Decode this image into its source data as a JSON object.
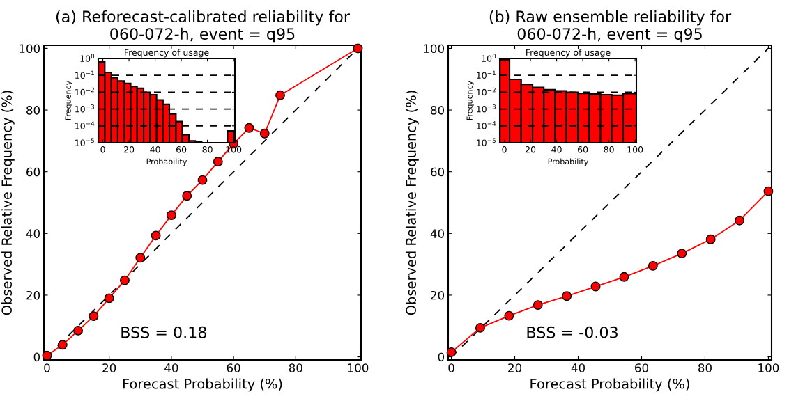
{
  "chart_data": [
    {
      "type": "line",
      "title": "(a) Reforecast-calibrated reliability for\n060-072-h, event = q95",
      "xlabel": "Forecast Probability (%)",
      "ylabel": "Observed Relative Frequency (%)",
      "xlim": [
        -1,
        101
      ],
      "ylim": [
        -1,
        101
      ],
      "xticks": [
        0,
        20,
        40,
        60,
        80,
        100
      ],
      "yticks": [
        0,
        20,
        40,
        60,
        80,
        100
      ],
      "annotations": [
        "BSS = 0.18"
      ],
      "series": [
        {
          "type": "line",
          "color": "#000000",
          "line_style": "dashed",
          "x": [
            0,
            100
          ],
          "values": [
            0,
            100
          ]
        },
        {
          "type": "line",
          "color": "#ff0000",
          "line_style": "solid",
          "marker": "circle",
          "x": [
            0,
            5,
            10,
            15,
            20,
            25,
            30,
            35,
            40,
            45,
            50,
            55,
            60,
            65,
            70,
            75,
            100
          ],
          "values": [
            0.4,
            3.9,
            8.5,
            13.2,
            19.0,
            24.8,
            32.1,
            39.3,
            45.9,
            52.2,
            57.3,
            63.3,
            69.1,
            74.2,
            72.4,
            84.8,
            100
          ]
        }
      ]
    },
    {
      "type": "histogram",
      "title": "Frequency of usage",
      "xlabel": "Probability",
      "ylabel": "Frequency",
      "log": "y",
      "grid": "y",
      "color": "#ff0000",
      "xlim": [
        -3.5,
        101
      ],
      "ylim": [
        1e-05,
        1
      ],
      "xticks": [
        0,
        20,
        40,
        60,
        80,
        100
      ],
      "yticks": [
        {
          "value": 1,
          "label": "10$^{0}$"
        },
        {
          "value": 0.1,
          "label": "10$^{−1}$"
        },
        {
          "value": 0.01,
          "label": "10$^{−2}$"
        },
        {
          "value": 0.001,
          "label": "10$^{−3}$"
        },
        {
          "value": 0.0001,
          "label": "10$^{−4}$"
        },
        {
          "value": 1e-05,
          "label": "10$^{−5}$"
        }
      ],
      "bins": [
        -3.4,
        1.5,
        6.5,
        11.4,
        16.4,
        21.3,
        26.2,
        31.2,
        36.1,
        41.1,
        46.0,
        50.9,
        55.9,
        60.8,
        65.8,
        70.7,
        75.6,
        80.6,
        85.5,
        90.5,
        95.4,
        100.3
      ],
      "values": [
        0.62,
        0.15,
        0.074,
        0.046,
        0.033,
        0.022,
        0.017,
        0.0098,
        0.0071,
        0.0035,
        0.0019,
        0.00051,
        0.00018,
        3e-05,
        1.3e-05,
        1.1e-05,
        null,
        null,
        null,
        null,
        5e-05
      ]
    },
    {
      "type": "line",
      "title": "(b) Raw ensemble reliability for\n060-072-h, event = q95",
      "xlabel": "Forecast Probability (%)",
      "ylabel": "Observed Relative Frequency (%)",
      "xlim": [
        -1,
        101
      ],
      "ylim": [
        -1,
        101
      ],
      "xticks": [
        0,
        20,
        40,
        60,
        80,
        100
      ],
      "yticks": [
        0,
        20,
        40,
        60,
        80,
        100
      ],
      "annotations": [
        "BSS = -0.03"
      ],
      "series": [
        {
          "type": "line",
          "color": "#000000",
          "line_style": "dashed",
          "x": [
            0,
            100
          ],
          "values": [
            0,
            100
          ]
        },
        {
          "type": "line",
          "color": "#ff0000",
          "line_style": "solid",
          "marker": "circle",
          "x": [
            0,
            9.1,
            18.2,
            27.3,
            36.4,
            45.5,
            54.5,
            63.6,
            72.7,
            81.8,
            90.9,
            100
          ],
          "values": [
            1.5,
            9.4,
            13.3,
            16.8,
            19.7,
            22.8,
            25.9,
            29.5,
            33.5,
            38.1,
            44.2,
            53.7
          ]
        }
      ]
    },
    {
      "type": "histogram",
      "title": "Frequency of usage",
      "xlabel": "Probability",
      "ylabel": "Frequency",
      "log": "y",
      "grid": "y",
      "color": "#ff0000",
      "xlim": [
        -3.5,
        101
      ],
      "ylim": [
        1e-05,
        1
      ],
      "xticks": [
        0,
        20,
        40,
        60,
        80,
        100
      ],
      "yticks": [
        {
          "value": 1,
          "label": "10$^{0}$"
        },
        {
          "value": 0.1,
          "label": "10$^{−1}$"
        },
        {
          "value": 0.01,
          "label": "10$^{−2}$"
        },
        {
          "value": 0.001,
          "label": "10$^{−3}$"
        },
        {
          "value": 0.0001,
          "label": "10$^{−4}$"
        },
        {
          "value": 1e-05,
          "label": "10$^{−5}$"
        }
      ],
      "bins": [
        -3.4,
        4.0,
        12.9,
        21.6,
        30.2,
        38.8,
        47.4,
        56.4,
        65.0,
        73.6,
        82.2,
        90.9,
        101
      ],
      "values": [
        0.85,
        0.058,
        0.029,
        0.019,
        0.014,
        0.012,
        0.0098,
        0.0085,
        0.0078,
        0.0071,
        0.0066,
        0.0083
      ]
    }
  ]
}
